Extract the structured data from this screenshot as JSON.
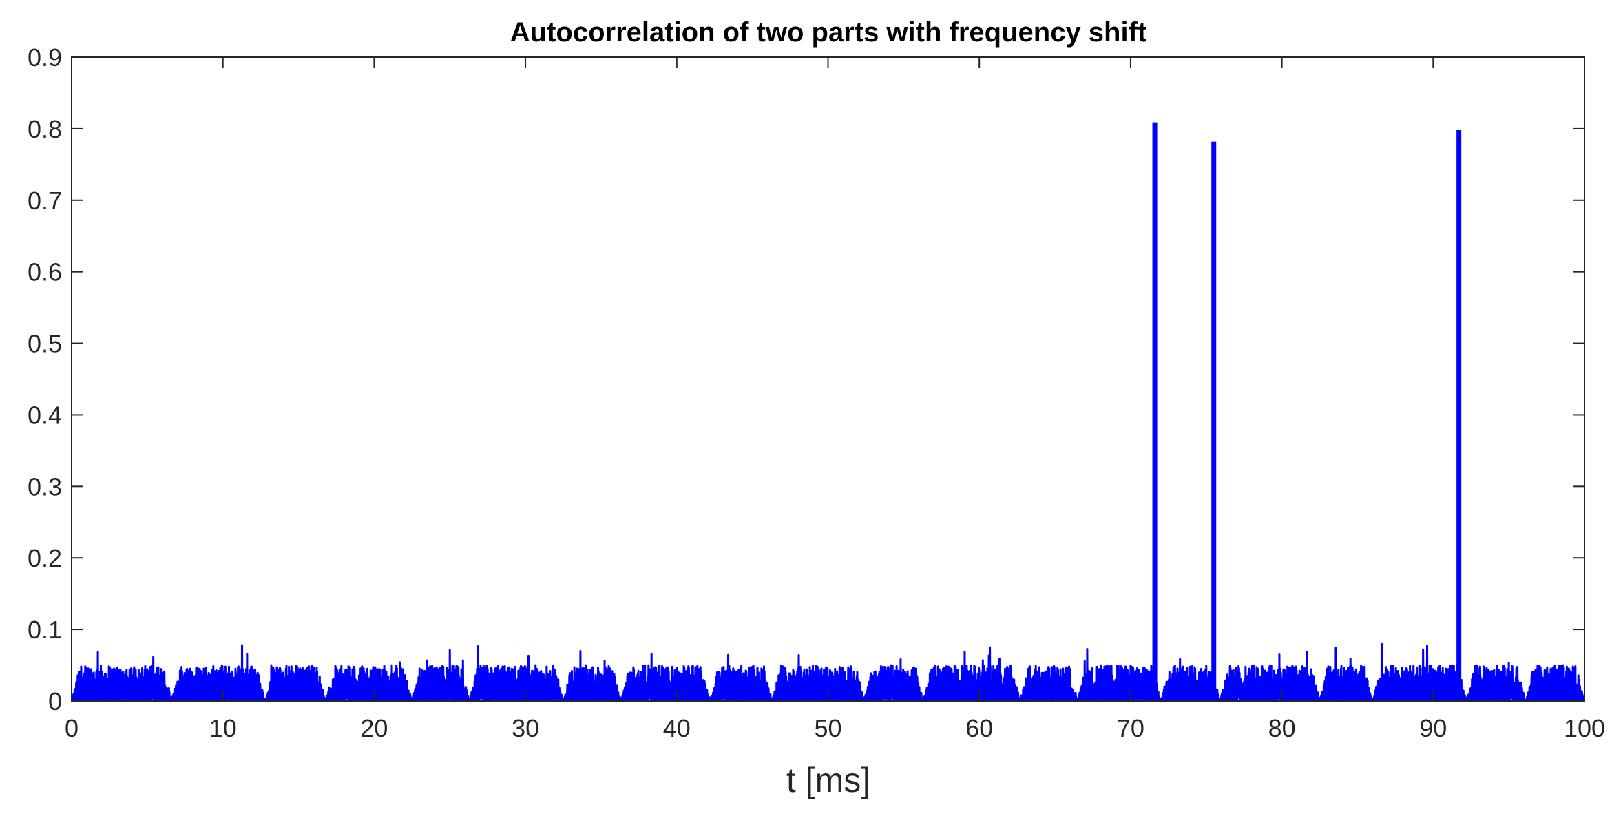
{
  "chart_data": {
    "type": "line",
    "title": "Autocorrelation of two parts with frequency shift",
    "xlabel": "t [ms]",
    "ylabel": "",
    "xlim": [
      0,
      100
    ],
    "ylim": [
      0,
      0.9
    ],
    "xticks": [
      0,
      10,
      20,
      30,
      40,
      50,
      60,
      70,
      80,
      90,
      100
    ],
    "yticks": [
      0,
      0.1,
      0.2,
      0.3,
      0.4,
      0.5,
      0.6,
      0.7,
      0.8,
      0.9
    ],
    "xtick_labels": [
      "0",
      "10",
      "20",
      "30",
      "40",
      "50",
      "60",
      "70",
      "80",
      "90",
      "100"
    ],
    "ytick_labels": [
      "0",
      "0.1",
      "0.2",
      "0.3",
      "0.4",
      "0.5",
      "0.6",
      "0.7",
      "0.8",
      "0.9"
    ],
    "grid": false,
    "line_color": "#0000ff",
    "peaks": [
      {
        "x": 71.6,
        "y": 0.808
      },
      {
        "x": 75.5,
        "y": 0.781
      },
      {
        "x": 91.7,
        "y": 0.797
      }
    ],
    "noise_floor": {
      "typical_max": 0.05,
      "occasional_max": 0.08
    },
    "noise_dips": [
      0,
      6.6,
      12.8,
      16.8,
      22.5,
      26.3,
      32.5,
      36.3,
      42.2,
      46.3,
      52.4,
      56.3,
      62.7,
      66.5,
      72.0,
      75.9,
      82.5,
      86.0,
      92.2,
      96.1,
      100
    ]
  }
}
